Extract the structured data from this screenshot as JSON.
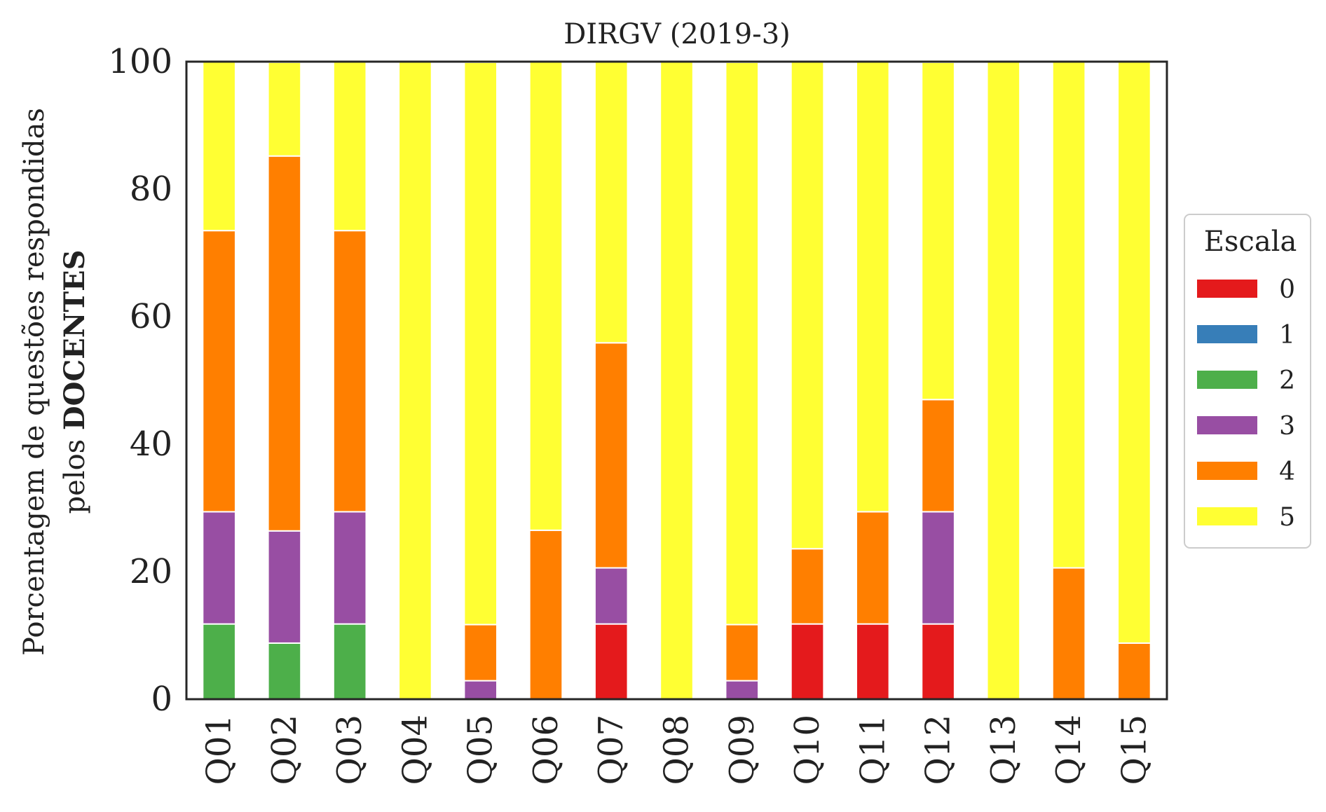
{
  "chart_data": {
    "type": "bar",
    "stacked": true,
    "title": "DIRGV (2019-3)",
    "ylabel_line1": "Porcentagem de questões respondidas",
    "ylabel_line2_prefix": "pelos ",
    "ylabel_line2_bold": "DOCENTES",
    "ylim": [
      0,
      100
    ],
    "yticks": [
      "0",
      "20",
      "40",
      "60",
      "80",
      "100"
    ],
    "grid": false,
    "legend_title": "Escala",
    "legend_position": "center-right",
    "categories": [
      "Q01",
      "Q02",
      "Q03",
      "Q04",
      "Q05",
      "Q06",
      "Q07",
      "Q08",
      "Q09",
      "Q10",
      "Q11",
      "Q12",
      "Q13",
      "Q14",
      "Q15"
    ],
    "series": [
      {
        "name": "0",
        "color": "#e41a1c",
        "values": [
          0,
          0,
          0,
          0,
          0,
          0,
          11.8,
          0,
          0,
          11.8,
          11.8,
          11.8,
          0,
          0,
          0
        ]
      },
      {
        "name": "1",
        "color": "#377eb8",
        "values": [
          0,
          0,
          0,
          0,
          0,
          0,
          0,
          0,
          0,
          0,
          0,
          0,
          0,
          0,
          0
        ]
      },
      {
        "name": "2",
        "color": "#4daf4a",
        "values": [
          11.8,
          8.8,
          11.8,
          0,
          0,
          0,
          0,
          0,
          0,
          0,
          0,
          0,
          0,
          0,
          0
        ]
      },
      {
        "name": "3",
        "color": "#984ea3",
        "values": [
          17.6,
          17.6,
          17.6,
          0,
          2.9,
          0,
          8.8,
          0,
          2.9,
          0,
          0,
          17.6,
          0,
          0,
          0
        ]
      },
      {
        "name": "4",
        "color": "#ff7f00",
        "values": [
          44.1,
          58.8,
          44.1,
          0,
          8.8,
          26.5,
          35.3,
          0,
          8.8,
          11.8,
          17.6,
          17.6,
          0,
          20.6,
          8.8
        ]
      },
      {
        "name": "5",
        "color": "#ffff33",
        "values": [
          26.5,
          14.7,
          26.5,
          100,
          88.2,
          73.5,
          44.1,
          100,
          88.2,
          76.5,
          70.6,
          52.9,
          100,
          79.4,
          91.2
        ]
      }
    ]
  }
}
